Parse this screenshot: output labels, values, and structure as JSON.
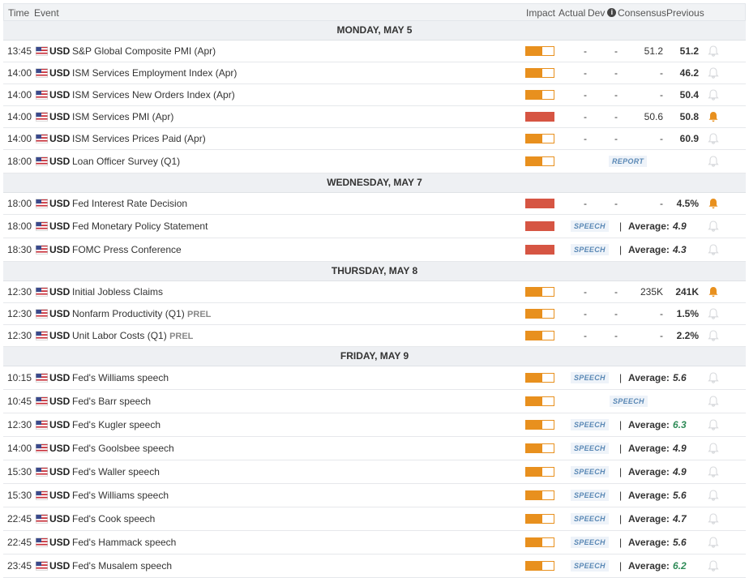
{
  "header": {
    "time": "Time",
    "event": "Event",
    "impact": "Impact",
    "actual": "Actual",
    "dev": "Dev",
    "info_icon": "i",
    "consensus": "Consensus",
    "previous": "Previous"
  },
  "colors": {
    "medium": "#e8901e",
    "high": "#d65543",
    "bell_active": "#e8901e",
    "bell_inactive": "#d8dadd",
    "green_value": "#2e8b57"
  },
  "days": [
    {
      "label": "MONDAY, MAY 5",
      "rows": [
        {
          "time": "13:45",
          "currency": "USD",
          "event": "S&P Global Composite PMI (Apr)",
          "impact": "medium",
          "impact_level": 0.6,
          "actual": "-",
          "dev": "-",
          "consensus": "51.2",
          "previous": "51.2",
          "alert": false
        },
        {
          "time": "14:00",
          "currency": "USD",
          "event": "ISM Services Employment Index (Apr)",
          "impact": "medium",
          "impact_level": 0.6,
          "actual": "-",
          "dev": "-",
          "consensus": "-",
          "previous": "46.2",
          "alert": false
        },
        {
          "time": "14:00",
          "currency": "USD",
          "event": "ISM Services New Orders Index (Apr)",
          "impact": "medium",
          "impact_level": 0.6,
          "actual": "-",
          "dev": "-",
          "consensus": "-",
          "previous": "50.4",
          "alert": false
        },
        {
          "time": "14:00",
          "currency": "USD",
          "event": "ISM Services PMI (Apr)",
          "impact": "high",
          "impact_level": 1,
          "actual": "-",
          "dev": "-",
          "consensus": "50.6",
          "previous": "50.8",
          "alert": true
        },
        {
          "time": "14:00",
          "currency": "USD",
          "event": "ISM Services Prices Paid (Apr)",
          "impact": "medium",
          "impact_level": 0.6,
          "actual": "-",
          "dev": "-",
          "consensus": "-",
          "previous": "60.9",
          "alert": false
        },
        {
          "time": "18:00",
          "currency": "USD",
          "event": "Loan Officer Survey (Q1)",
          "impact": "medium",
          "impact_level": 0.6,
          "type": "report",
          "tag": "REPORT",
          "alert": false
        }
      ]
    },
    {
      "label": "WEDNESDAY, MAY 7",
      "rows": [
        {
          "time": "18:00",
          "currency": "USD",
          "event": "Fed Interest Rate Decision",
          "impact": "high",
          "impact_level": 1,
          "actual": "-",
          "dev": "-",
          "consensus": "-",
          "previous": "4.5%",
          "alert": true
        },
        {
          "time": "18:00",
          "currency": "USD",
          "event": "Fed Monetary Policy Statement",
          "impact": "high",
          "impact_level": 1,
          "type": "speech",
          "tag": "SPEECH",
          "avg_label": "Average:",
          "avg": "4.9",
          "alert": false
        },
        {
          "time": "18:30",
          "currency": "USD",
          "event": "FOMC Press Conference",
          "impact": "high",
          "impact_level": 1,
          "type": "speech",
          "tag": "SPEECH",
          "avg_label": "Average:",
          "avg": "4.3",
          "alert": false
        }
      ]
    },
    {
      "label": "THURSDAY, MAY 8",
      "rows": [
        {
          "time": "12:30",
          "currency": "USD",
          "event": "Initial Jobless Claims",
          "impact": "medium",
          "impact_level": 0.6,
          "actual": "-",
          "dev": "-",
          "consensus": "235K",
          "previous": "241K",
          "alert": true
        },
        {
          "time": "12:30",
          "currency": "USD",
          "event": "Nonfarm Productivity (Q1)",
          "prel": "PREL",
          "impact": "medium",
          "impact_level": 0.6,
          "actual": "-",
          "dev": "-",
          "consensus": "-",
          "previous": "1.5%",
          "alert": false
        },
        {
          "time": "12:30",
          "currency": "USD",
          "event": "Unit Labor Costs (Q1)",
          "prel": "PREL",
          "impact": "medium",
          "impact_level": 0.6,
          "actual": "-",
          "dev": "-",
          "consensus": "-",
          "previous": "2.2%",
          "alert": false
        }
      ]
    },
    {
      "label": "FRIDAY, MAY 9",
      "rows": [
        {
          "time": "10:15",
          "currency": "USD",
          "event": "Fed's Williams speech",
          "impact": "medium",
          "impact_level": 0.6,
          "type": "speech",
          "tag": "SPEECH",
          "avg_label": "Average:",
          "avg": "5.6",
          "alert": false
        },
        {
          "time": "10:45",
          "currency": "USD",
          "event": "Fed's Barr speech",
          "impact": "medium",
          "impact_level": 0.6,
          "type": "speech_center",
          "tag": "SPEECH",
          "alert": false
        },
        {
          "time": "12:30",
          "currency": "USD",
          "event": "Fed's Kugler speech",
          "impact": "medium",
          "impact_level": 0.6,
          "type": "speech",
          "tag": "SPEECH",
          "avg_label": "Average:",
          "avg": "6.3",
          "avg_green": true,
          "alert": false
        },
        {
          "time": "14:00",
          "currency": "USD",
          "event": "Fed's Goolsbee speech",
          "impact": "medium",
          "impact_level": 0.6,
          "type": "speech",
          "tag": "SPEECH",
          "avg_label": "Average:",
          "avg": "4.9",
          "alert": false
        },
        {
          "time": "15:30",
          "currency": "USD",
          "event": "Fed's Waller speech",
          "impact": "medium",
          "impact_level": 0.6,
          "type": "speech",
          "tag": "SPEECH",
          "avg_label": "Average:",
          "avg": "4.9",
          "alert": false
        },
        {
          "time": "15:30",
          "currency": "USD",
          "event": "Fed's Williams speech",
          "impact": "medium",
          "impact_level": 0.6,
          "type": "speech",
          "tag": "SPEECH",
          "avg_label": "Average:",
          "avg": "5.6",
          "alert": false
        },
        {
          "time": "22:45",
          "currency": "USD",
          "event": "Fed's Cook speech",
          "impact": "medium",
          "impact_level": 0.6,
          "type": "speech",
          "tag": "SPEECH",
          "avg_label": "Average:",
          "avg": "4.7",
          "alert": false
        },
        {
          "time": "22:45",
          "currency": "USD",
          "event": "Fed's Hammack speech",
          "impact": "medium",
          "impact_level": 0.6,
          "type": "speech",
          "tag": "SPEECH",
          "avg_label": "Average:",
          "avg": "5.6",
          "alert": false
        },
        {
          "time": "23:45",
          "currency": "USD",
          "event": "Fed's Musalem speech",
          "impact": "medium",
          "impact_level": 0.6,
          "type": "speech",
          "tag": "SPEECH",
          "avg_label": "Average:",
          "avg": "6.2",
          "avg_green": true,
          "alert": false
        }
      ]
    }
  ]
}
